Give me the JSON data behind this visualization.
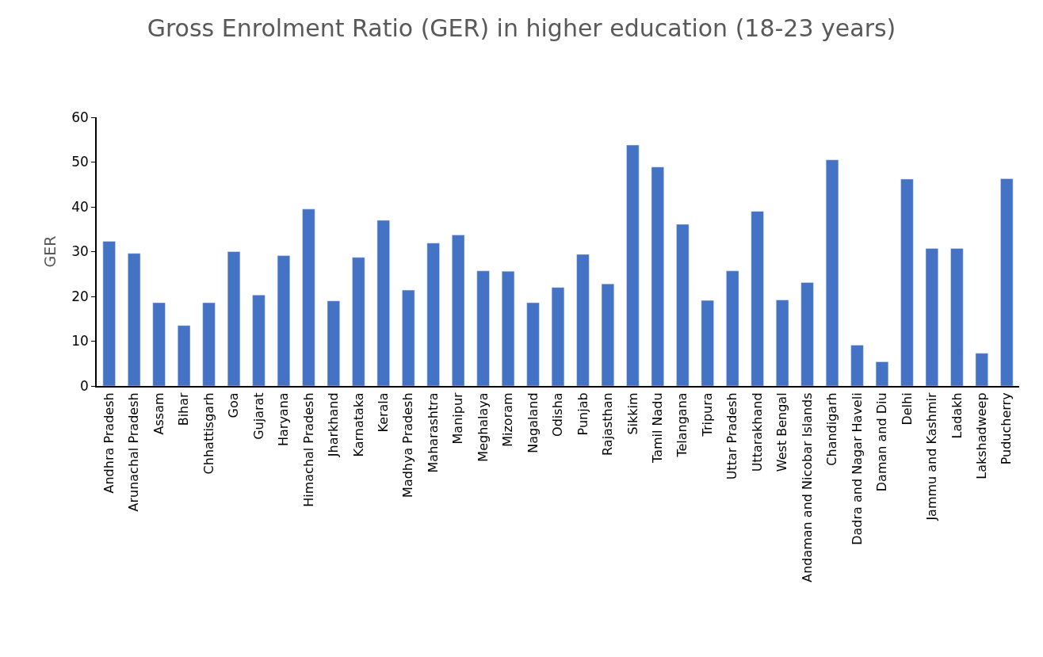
{
  "chart_data": {
    "type": "bar",
    "title": "Gross Enrolment Ratio (GER) in higher education (18-23 years)",
    "ylabel": "GER",
    "categories": [
      "Andhra Pradesh",
      "Arunachal Pradesh",
      "Assam",
      "Bihar",
      "Chhattisgarh",
      "Goa",
      "Gujarat",
      "Haryana",
      "Himachal Pradesh",
      "Jharkhand",
      "Karnataka",
      "Kerala",
      "Madhya Pradesh",
      "Maharashtra",
      "Manipur",
      "Meghalaya",
      "Mizoram",
      "Nagaland",
      "Odisha",
      "Punjab",
      "Rajasthan",
      "Sikkim",
      "Tamil Nadu",
      "Telangana",
      "Tripura",
      "Uttar Pradesh",
      "Uttarakhand",
      "West Bengal",
      "Andaman and Nicobar Islands",
      "Chandigarh",
      "Dadra and Nagar Haveli",
      "Daman and Diu",
      "Delhi",
      "Jammu and Kashmir",
      "Ladakh",
      "Lakshadweep",
      "Puducherry"
    ],
    "values": [
      32.3,
      29.6,
      18.6,
      13.5,
      18.6,
      30.0,
      20.3,
      29.1,
      39.5,
      19.0,
      28.7,
      37.0,
      21.4,
      31.9,
      33.7,
      25.7,
      25.6,
      18.6,
      22.0,
      29.4,
      22.8,
      53.8,
      48.9,
      36.1,
      19.1,
      25.7,
      39.0,
      19.2,
      23.1,
      50.5,
      9.1,
      5.4,
      46.2,
      30.7,
      30.7,
      7.3,
      46.3
    ],
    "color": "#4472c4",
    "ylim": [
      0,
      60
    ],
    "yticks": [
      0,
      10,
      20,
      30,
      40,
      50,
      60
    ],
    "legend": false
  }
}
